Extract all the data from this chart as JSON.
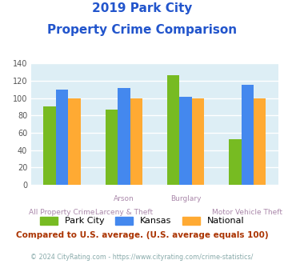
{
  "title_line1": "2019 Park City",
  "title_line2": "Property Crime Comparison",
  "park_city": [
    90,
    87,
    126,
    53
  ],
  "kansas": [
    110,
    112,
    101,
    115
  ],
  "national": [
    100,
    100,
    100,
    100
  ],
  "park_city_color": "#77bb22",
  "kansas_color": "#4488ee",
  "national_color": "#ffaa33",
  "bg_color": "#ddeef5",
  "ylim": [
    0,
    140
  ],
  "yticks": [
    0,
    20,
    40,
    60,
    80,
    100,
    120,
    140
  ],
  "grid_color": "#ffffff",
  "top_labels": [
    "",
    "Arson",
    "Burglary",
    ""
  ],
  "bottom_labels": [
    "All Property Crime",
    "Larceny & Theft",
    "",
    "Motor Vehicle Theft"
  ],
  "label_color": "#aa88aa",
  "subtitle": "Compared to U.S. average. (U.S. average equals 100)",
  "footer": "© 2024 CityRating.com - https://www.cityrating.com/crime-statistics/",
  "title_color": "#2255cc",
  "subtitle_color": "#aa3300",
  "footer_color": "#88aaaa",
  "legend_labels": [
    "Park City",
    "Kansas",
    "National"
  ]
}
